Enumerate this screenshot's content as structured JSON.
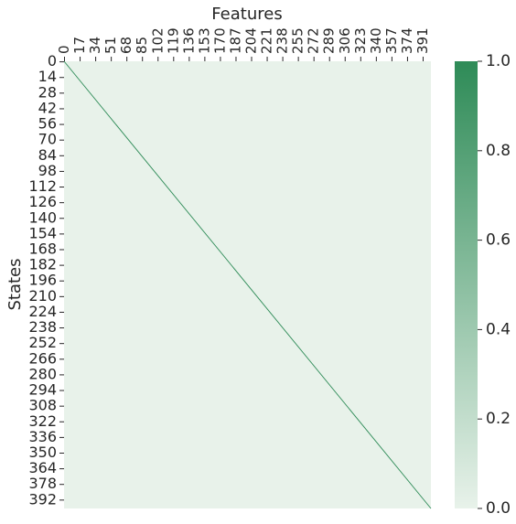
{
  "chart_data": {
    "type": "heatmap",
    "title": "",
    "xlabel": "Features",
    "ylabel": "States",
    "x_axis_position": "top",
    "rows": 400,
    "cols": 400,
    "x_ticks": [
      0,
      17,
      34,
      51,
      68,
      85,
      102,
      119,
      136,
      153,
      170,
      187,
      204,
      221,
      238,
      255,
      272,
      289,
      306,
      323,
      340,
      357,
      374,
      391
    ],
    "y_ticks": [
      0,
      14,
      28,
      42,
      56,
      70,
      84,
      98,
      112,
      126,
      140,
      154,
      168,
      182,
      196,
      210,
      224,
      238,
      252,
      266,
      280,
      294,
      308,
      322,
      336,
      350,
      364,
      378,
      392
    ],
    "pattern": "identity",
    "diagonal_value": 1.0,
    "off_diagonal_value": 0.0,
    "value_range": [
      0.0,
      1.0
    ],
    "colorbar": {
      "ticks": [
        "0.0",
        "0.2",
        "0.4",
        "0.6",
        "0.8",
        "1.0"
      ],
      "tick_values": [
        0.0,
        0.2,
        0.4,
        0.6,
        0.8,
        1.0
      ],
      "color_low": "#e8f2ea",
      "color_high": "#2e8b57"
    },
    "grid": false
  }
}
